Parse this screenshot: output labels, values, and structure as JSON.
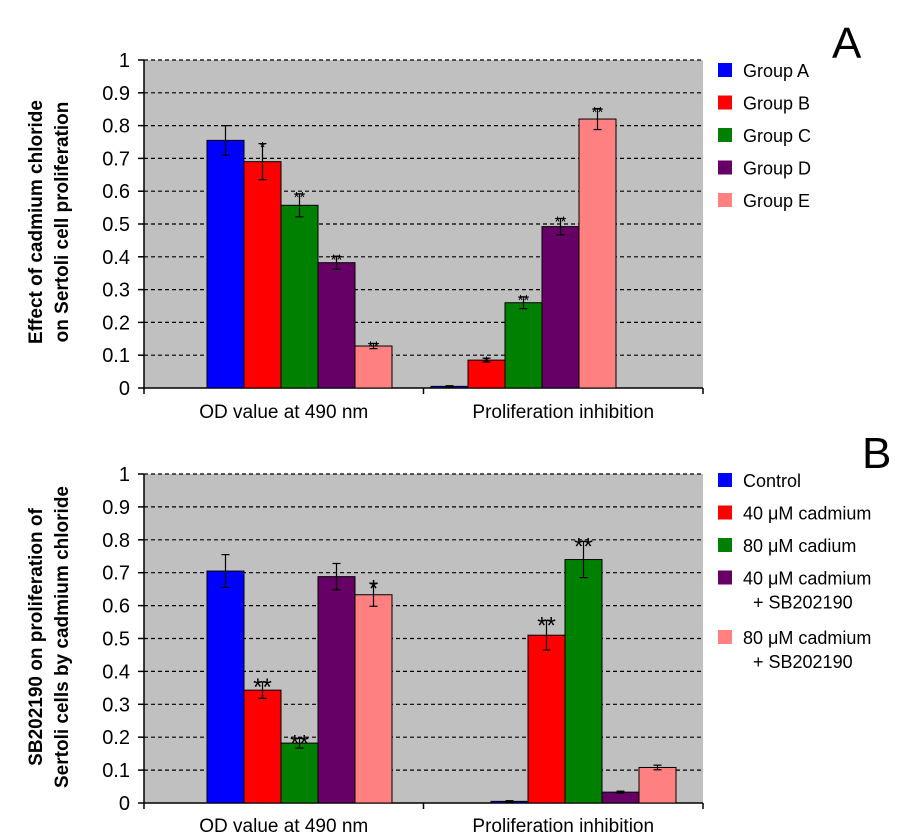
{
  "panel_labels": [
    "A",
    "B"
  ],
  "chart_data": [
    {
      "type": "bar",
      "panel": "A",
      "ylabel_lines": [
        "Effect of cadmium chloride",
        "on Sertoli cell proliferation"
      ],
      "xlabel": "",
      "ylim": [
        0,
        1
      ],
      "yticks": [
        "0",
        "0.1",
        "0.2",
        "0.3",
        "0.4",
        "0.5",
        "0.6",
        "0.7",
        "0.8",
        "0.9",
        "1"
      ],
      "grid": true,
      "legend_position": "right",
      "categories": [
        "OD value at 490 nm",
        "Proliferation inhibition"
      ],
      "series": [
        {
          "name": "Group A",
          "color": "#0000FF",
          "values": [
            0.755,
            0.005
          ],
          "errors": [
            0.045,
            0.002
          ],
          "marks": [
            "",
            ""
          ]
        },
        {
          "name": "Group B",
          "color": "#FF0000",
          "values": [
            0.69,
            0.085
          ],
          "errors": [
            0.055,
            0.006
          ],
          "marks": [
            "*",
            "*"
          ]
        },
        {
          "name": "Group C",
          "color": "#008000",
          "values": [
            0.557,
            0.26
          ],
          "errors": [
            0.035,
            0.018
          ],
          "marks": [
            "**",
            "**"
          ]
        },
        {
          "name": "Group D",
          "color": "#660066",
          "values": [
            0.382,
            0.492
          ],
          "errors": [
            0.02,
            0.025
          ],
          "marks": [
            "**",
            "**"
          ]
        },
        {
          "name": "Group E",
          "color": "#FF8080",
          "values": [
            0.128,
            0.82
          ],
          "errors": [
            0.008,
            0.032
          ],
          "marks": [
            "**",
            "**"
          ]
        }
      ]
    },
    {
      "type": "bar",
      "panel": "B",
      "ylabel_lines": [
        "SB202190 on proliferation of",
        "Sertoli cells by cadmium chloride"
      ],
      "xlabel": "",
      "ylim": [
        0,
        1
      ],
      "yticks": [
        "0",
        "0.1",
        "0.2",
        "0.3",
        "0.4",
        "0.5",
        "0.6",
        "0.7",
        "0.8",
        "0.9",
        "1"
      ],
      "grid": true,
      "legend_position": "right",
      "categories": [
        "OD value at 490 nm",
        "Proliferation inhibition"
      ],
      "series": [
        {
          "name": "Control",
          "legend_lines": [
            "Control"
          ],
          "color": "#0000FF",
          "values": [
            0.705,
            0.005
          ],
          "errors": [
            0.05,
            0.002
          ],
          "marks": [
            "",
            ""
          ]
        },
        {
          "name": "40 μM cadmium",
          "legend_lines": [
            "40 μM cadmium"
          ],
          "color": "#FF0000",
          "values": [
            0.343,
            0.51
          ],
          "errors": [
            0.025,
            0.045
          ],
          "marks": [
            "**",
            "**"
          ]
        },
        {
          "name": "80 μM cadium",
          "legend_lines": [
            "80 μM cadium"
          ],
          "color": "#008000",
          "values": [
            0.182,
            0.74
          ],
          "errors": [
            0.015,
            0.055
          ],
          "marks": [
            "**",
            "**"
          ]
        },
        {
          "name": "40 μM cadmium + SB202190",
          "legend_lines": [
            "40 μM cadmium",
            "+ SB202190"
          ],
          "color": "#660066",
          "values": [
            0.688,
            0.033
          ],
          "errors": [
            0.04,
            0.003
          ],
          "marks": [
            "",
            ""
          ]
        },
        {
          "name": "80 μM cadmium + SB202190",
          "legend_lines": [
            "80 μM cadmium",
            "+ SB202190"
          ],
          "color": "#FF8080",
          "values": [
            0.633,
            0.108
          ],
          "errors": [
            0.035,
            0.007
          ],
          "marks": [
            "*",
            ""
          ]
        }
      ]
    }
  ]
}
